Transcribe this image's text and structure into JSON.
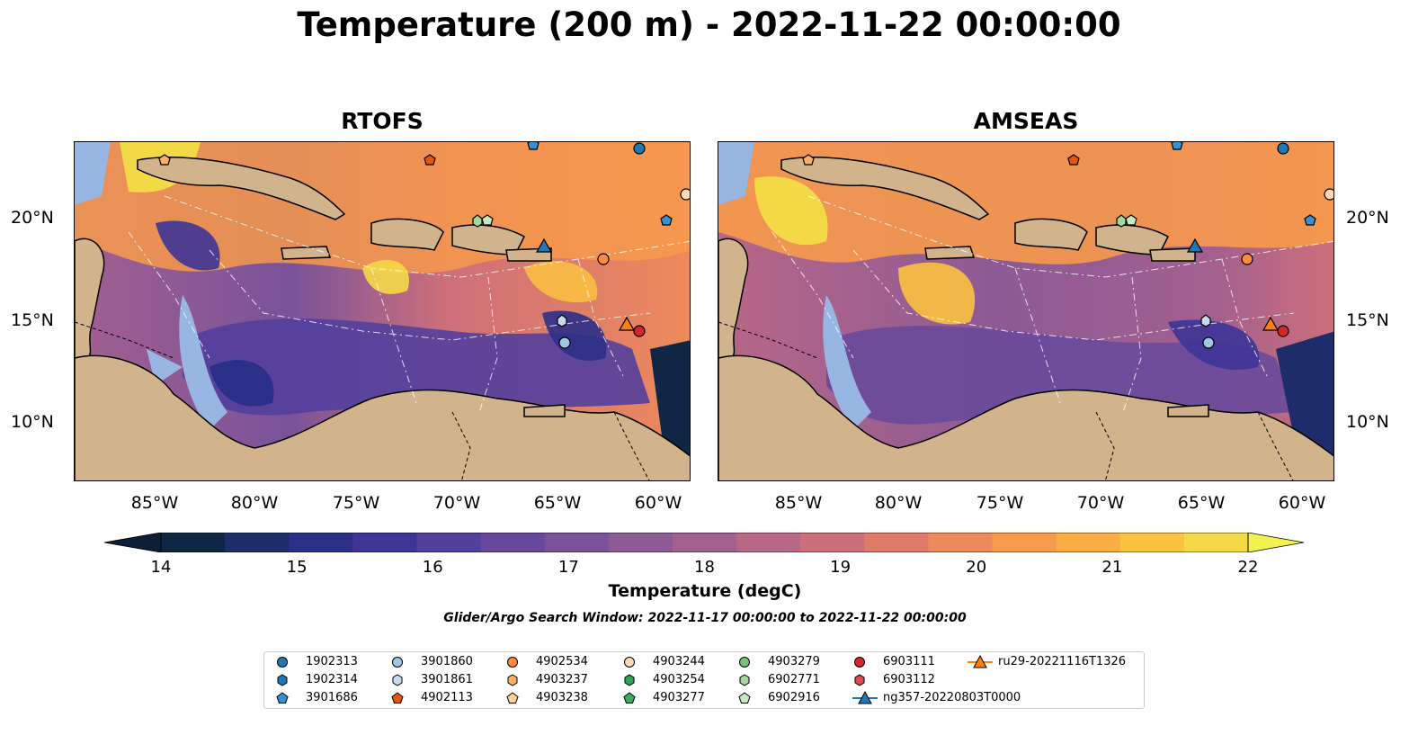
{
  "figure_title": "Temperature (200 m) - 2022-11-22 00:00:00",
  "panels": [
    {
      "title": "RTOFS"
    },
    {
      "title": "AMSEAS"
    }
  ],
  "longitude_ticks": [
    "85°W",
    "80°W",
    "75°W",
    "70°W",
    "65°W",
    "60°W"
  ],
  "latitude_ticks": [
    "20°N",
    "15°N",
    "10°N"
  ],
  "colorbar": {
    "label": "Temperature (degC)",
    "min": 14,
    "max": 22,
    "ticks": [
      "14",
      "15",
      "16",
      "17",
      "18",
      "19",
      "20",
      "21",
      "22"
    ],
    "colors": [
      "#0f2645",
      "#1e2c6c",
      "#2c2f88",
      "#3e3497",
      "#533f9c",
      "#66499c",
      "#79529a",
      "#8d5a95",
      "#a2608f",
      "#b86786",
      "#cd6f7a",
      "#e07a6b",
      "#ee8a5a",
      "#f79a4b",
      "#fbad42",
      "#fbc240",
      "#f4d947"
    ],
    "extend_low_color": "#0c1f36",
    "extend_high_color": "#f2f24f"
  },
  "search_window": "Glider/Argo Search Window: 2022-11-17 00:00:00 to 2022-11-22 00:00:00",
  "colors": {
    "land": "#d2b48c",
    "shallow_water": "#97b6e1",
    "deep_dark": "#0c2233"
  },
  "legend": [
    {
      "id": "1902313",
      "marker": "circle",
      "color": "#1f77b4"
    },
    {
      "id": "1902314",
      "marker": "hexagon",
      "color": "#1f77b4"
    },
    {
      "id": "3901686",
      "marker": "pentagon",
      "color": "#3a8fd0"
    },
    {
      "id": "3901860",
      "marker": "circle",
      "color": "#9ecae1"
    },
    {
      "id": "3901861",
      "marker": "hexagon",
      "color": "#c6dbef"
    },
    {
      "id": "4902113",
      "marker": "pentagon",
      "color": "#e6550d"
    },
    {
      "id": "4902534",
      "marker": "circle",
      "color": "#fd8d3c"
    },
    {
      "id": "4903237",
      "marker": "hexagon",
      "color": "#fdae6b"
    },
    {
      "id": "4903238",
      "marker": "pentagon",
      "color": "#fdd0a2"
    },
    {
      "id": "4903244",
      "marker": "circle",
      "color": "#fdd9b5"
    },
    {
      "id": "4903254",
      "marker": "hexagon",
      "color": "#31a354"
    },
    {
      "id": "4903277",
      "marker": "pentagon",
      "color": "#41ab5d"
    },
    {
      "id": "4903279",
      "marker": "circle",
      "color": "#74c476"
    },
    {
      "id": "6902771",
      "marker": "hexagon",
      "color": "#a1d99b"
    },
    {
      "id": "6902916",
      "marker": "pentagon",
      "color": "#c7e9c0"
    },
    {
      "id": "6903111",
      "marker": "circle",
      "color": "#d62728"
    },
    {
      "id": "6903112",
      "marker": "hexagon",
      "color": "#e34a4a"
    },
    {
      "id": "ng357-20220803T0000",
      "marker": "triangle-line",
      "color": "#1f77b4"
    },
    {
      "id": "ru29-20221116T1326",
      "marker": "triangle-line",
      "color": "#ff7f0e"
    }
  ]
}
